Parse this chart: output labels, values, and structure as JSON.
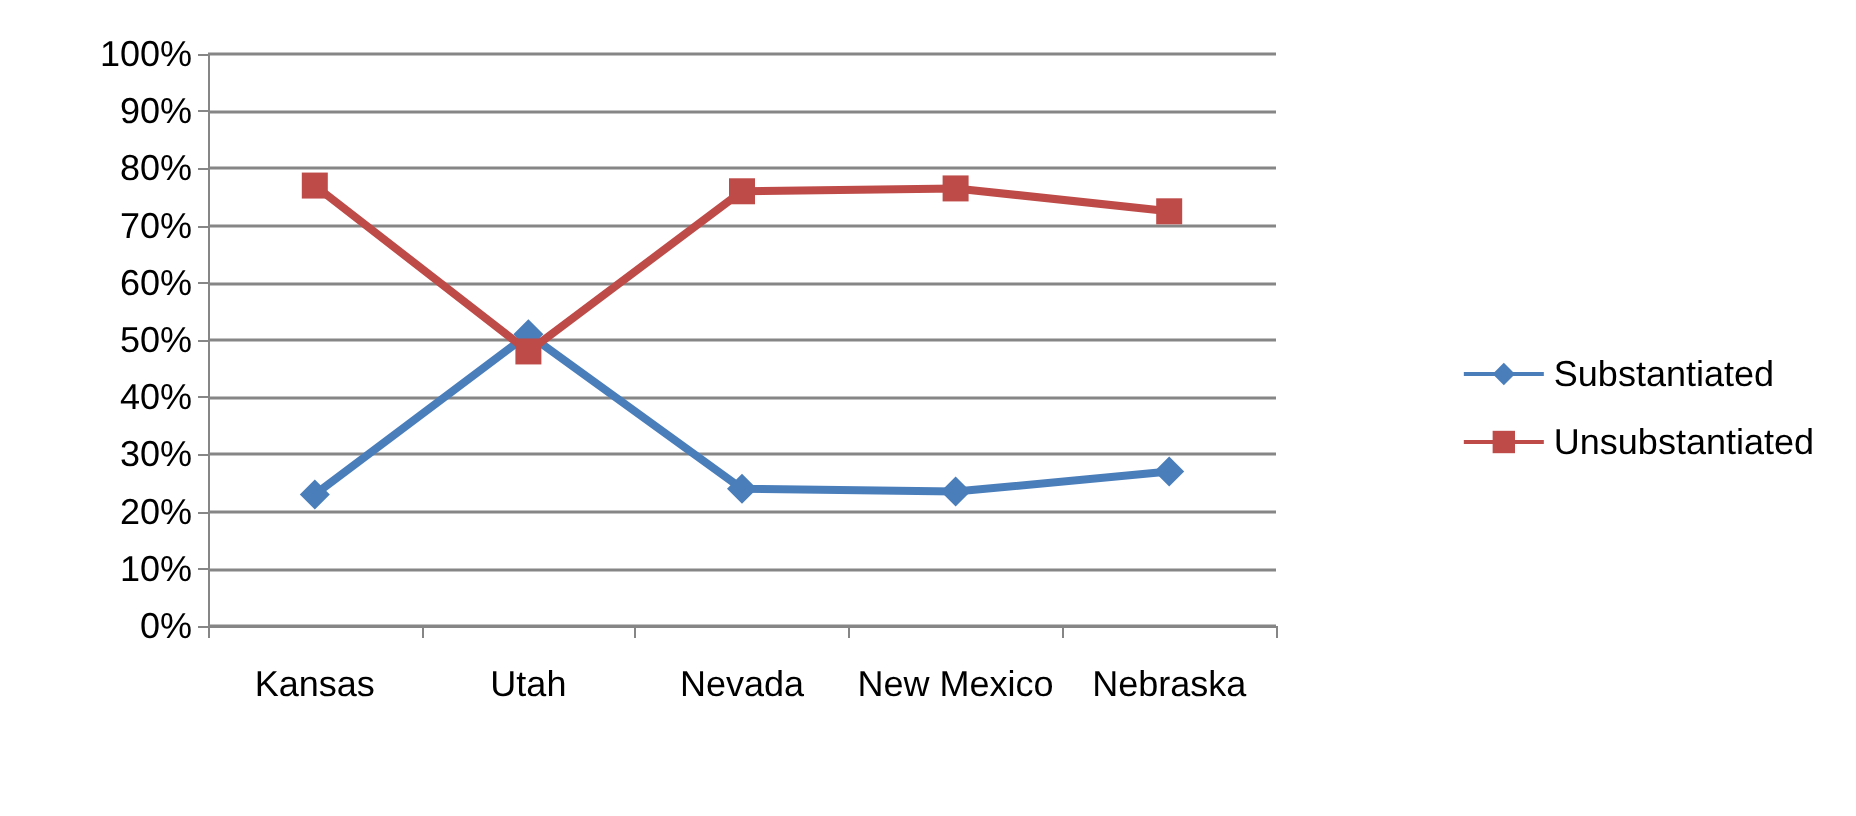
{
  "chart_data": {
    "type": "line",
    "categories": [
      "Kansas",
      "Utah",
      "Nevada",
      "New Mexico",
      "Nebraska"
    ],
    "series": [
      {
        "name": "Substantiated",
        "color": "#4a7ebb",
        "marker": "diamond",
        "values": [
          23,
          51,
          24,
          23.5,
          27
        ]
      },
      {
        "name": "Unsubstantiated",
        "color": "#be4b48",
        "marker": "square",
        "values": [
          77,
          48,
          76,
          76.5,
          72.5
        ]
      }
    ],
    "ylim": [
      0,
      100
    ],
    "yticks": [
      {
        "value": 0,
        "label": "0%"
      },
      {
        "value": 10,
        "label": "10%"
      },
      {
        "value": 20,
        "label": "20%"
      },
      {
        "value": 30,
        "label": "30%"
      },
      {
        "value": 40,
        "label": "40%"
      },
      {
        "value": 50,
        "label": "50%"
      },
      {
        "value": 60,
        "label": "60%"
      },
      {
        "value": 70,
        "label": "70%"
      },
      {
        "value": 80,
        "label": "80%"
      },
      {
        "value": 90,
        "label": "90%"
      },
      {
        "value": 100,
        "label": "100%"
      }
    ],
    "grid": "y",
    "legend": "right"
  }
}
